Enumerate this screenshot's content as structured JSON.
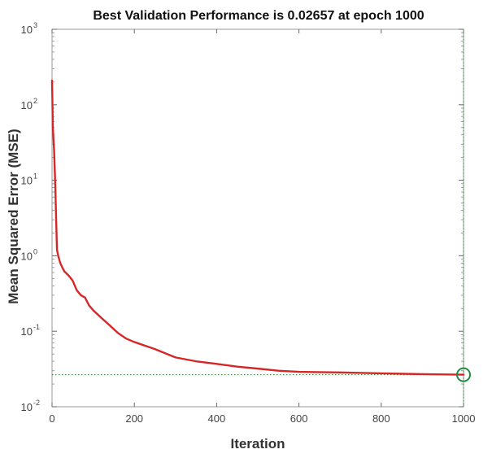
{
  "chart_data": {
    "type": "line",
    "title": "Best Validation Performance is 0.02657 at epoch 1000",
    "xlabel": "Iteration",
    "ylabel": "Mean Squared Error  (MSE)",
    "xscale": "linear",
    "yscale": "log",
    "xlim": [
      0,
      1000
    ],
    "ylim": [
      0.01,
      1000
    ],
    "xticks": [
      0,
      200,
      400,
      600,
      800,
      1000
    ],
    "xtick_labels": [
      "0",
      "200",
      "400",
      "600",
      "800",
      "1000"
    ],
    "yticks": [
      0.01,
      0.1,
      1,
      10,
      100,
      1000
    ],
    "ytick_labels": [
      {
        "base": "10",
        "exp": "-2"
      },
      {
        "base": "10",
        "exp": "-1"
      },
      {
        "base": "10",
        "exp": "0"
      },
      {
        "base": "10",
        "exp": "1"
      },
      {
        "base": "10",
        "exp": "2"
      },
      {
        "base": "10",
        "exp": "3"
      }
    ],
    "grid": false,
    "series": [
      {
        "color": "#d62728",
        "x": [
          0,
          2,
          5,
          8,
          10,
          12,
          15,
          20,
          25,
          30,
          40,
          50,
          60,
          70,
          80,
          90,
          100,
          120,
          140,
          160,
          180,
          200,
          250,
          300,
          350,
          400,
          450,
          500,
          550,
          600,
          700,
          800,
          900,
          1000
        ],
        "y": [
          210,
          50,
          25,
          8,
          3,
          1.2,
          1.0,
          0.8,
          0.7,
          0.62,
          0.55,
          0.47,
          0.35,
          0.3,
          0.28,
          0.22,
          0.19,
          0.15,
          0.12,
          0.095,
          0.08,
          0.072,
          0.058,
          0.045,
          0.04,
          0.037,
          0.034,
          0.032,
          0.03,
          0.029,
          0.0285,
          0.0277,
          0.027,
          0.0266
        ]
      }
    ],
    "best": {
      "epoch": 1000,
      "value": 0.02657,
      "marker_color": "#1e8c3c",
      "guide_color": "#2e7d32"
    }
  }
}
